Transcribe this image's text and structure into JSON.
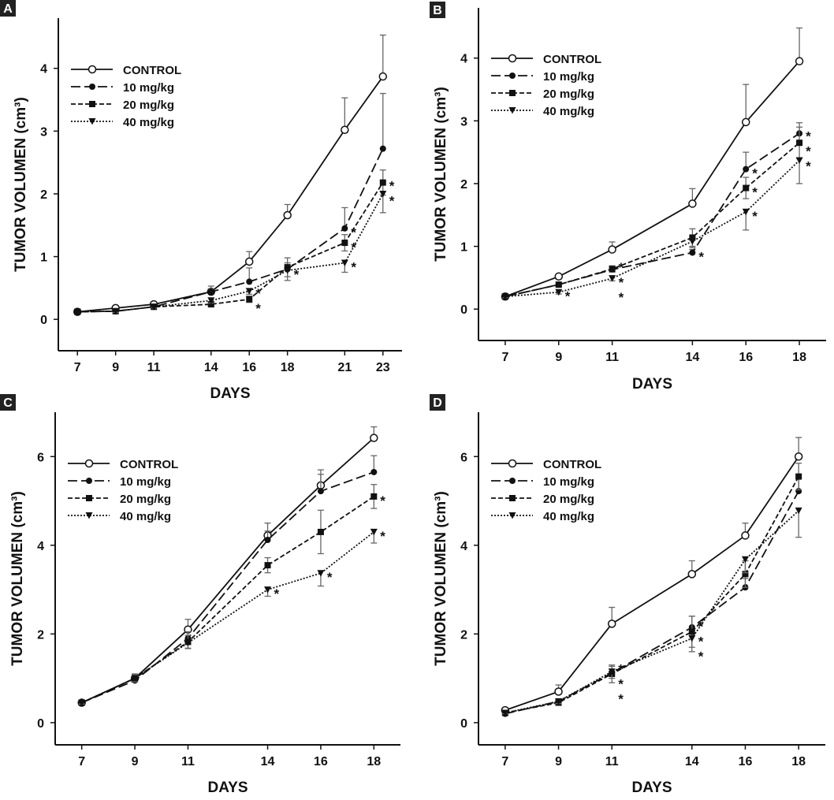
{
  "chart_data": [
    {
      "panel_label": "A",
      "type": "line",
      "xlabel": "DAYS",
      "ylabel": "TUMOR VOLUMEN (cm³)",
      "x": [
        7,
        9,
        11,
        14,
        16,
        18,
        21,
        23
      ],
      "x_ticks": [
        "7",
        "9",
        "11",
        "14",
        "16",
        "18",
        "21",
        "23"
      ],
      "y_ticks": [
        "0",
        "1",
        "2",
        "3",
        "4"
      ],
      "xlim": [
        6,
        24
      ],
      "ylim": [
        -0.5,
        4.8
      ],
      "grid": false,
      "legend_position": "top-left",
      "series": [
        {
          "name": "CONTROL",
          "marker": "open-circle",
          "line": "solid",
          "values": [
            0.12,
            0.18,
            0.24,
            0.44,
            0.92,
            1.66,
            3.02,
            3.87
          ],
          "error": [
            0,
            0.02,
            0.02,
            0.09,
            0.16,
            0.17,
            0.51,
            0.66
          ],
          "significant_days": []
        },
        {
          "name": "10 mg/kg",
          "marker": "filled-circle",
          "line": "long-dash",
          "values": [
            0.12,
            0.13,
            0.2,
            0.44,
            0.6,
            0.8,
            1.45,
            2.72
          ],
          "error": [
            0,
            0.02,
            0.02,
            0.05,
            0.22,
            0.1,
            0.33,
            0.88
          ],
          "significant_days": [
            21
          ]
        },
        {
          "name": "20 mg/kg",
          "marker": "filled-square",
          "line": "short-dash",
          "values": [
            0.12,
            0.13,
            0.2,
            0.24,
            0.32,
            0.83,
            1.22,
            2.18
          ],
          "error": [
            0,
            0.02,
            0.02,
            0.03,
            0.05,
            0.15,
            0.13,
            0.2
          ],
          "significant_days": [
            16,
            21,
            23
          ]
        },
        {
          "name": "40 mg/kg",
          "marker": "down-triangle",
          "line": "dotted",
          "values": [
            0.12,
            0.13,
            0.2,
            0.3,
            0.45,
            0.78,
            0.9,
            2.0
          ],
          "error": [
            0,
            0.02,
            0.02,
            0.04,
            0.05,
            0.16,
            0.15,
            0.3
          ],
          "significant_days": [
            16,
            18,
            21,
            23
          ]
        }
      ]
    },
    {
      "panel_label": "B",
      "type": "line",
      "xlabel": "DAYS",
      "ylabel": "TUMOR VOLUMEN (cm³)",
      "x": [
        7,
        9,
        11,
        14,
        16,
        18
      ],
      "x_ticks": [
        "7",
        "9",
        "11",
        "14",
        "16",
        "18"
      ],
      "y_ticks": [
        "0",
        "1",
        "2",
        "3",
        "4"
      ],
      "xlim": [
        6,
        19
      ],
      "ylim": [
        -0.5,
        4.8
      ],
      "grid": false,
      "legend_position": "top-left",
      "series": [
        {
          "name": "CONTROL",
          "marker": "open-circle",
          "line": "solid",
          "values": [
            0.2,
            0.52,
            0.95,
            1.68,
            2.98,
            3.95
          ],
          "error": [
            0.02,
            0.03,
            0.12,
            0.24,
            0.6,
            0.53
          ],
          "significant_days": []
        },
        {
          "name": "10 mg/kg",
          "marker": "filled-circle",
          "line": "long-dash",
          "values": [
            0.2,
            0.39,
            0.63,
            0.9,
            2.23,
            2.8
          ],
          "error": [
            0.02,
            0.03,
            0.05,
            0.05,
            0.27,
            0.17
          ],
          "significant_days": [
            11,
            14,
            16,
            18
          ]
        },
        {
          "name": "20 mg/kg",
          "marker": "filled-square",
          "line": "short-dash",
          "values": [
            0.2,
            0.39,
            0.64,
            1.14,
            1.93,
            2.65
          ],
          "error": [
            0.02,
            0.03,
            0.05,
            0.14,
            0.17,
            0.25
          ],
          "significant_days": [
            11,
            16,
            18
          ]
        },
        {
          "name": "40 mg/kg",
          "marker": "down-triangle",
          "line": "dotted",
          "values": [
            0.2,
            0.27,
            0.49,
            1.08,
            1.55,
            2.37
          ],
          "error": [
            0.02,
            0.03,
            0.04,
            0.1,
            0.29,
            0.37
          ],
          "significant_days": [
            9,
            11,
            16,
            18
          ]
        }
      ]
    },
    {
      "panel_label": "C",
      "type": "line",
      "xlabel": "DAYS",
      "ylabel": "TUMOR VOLUMEN (cm³)",
      "x": [
        7,
        9,
        11,
        14,
        16,
        18
      ],
      "x_ticks": [
        "7",
        "9",
        "11",
        "14",
        "16",
        "18"
      ],
      "y_ticks": [
        "0",
        "2",
        "4",
        "6"
      ],
      "xlim": [
        6,
        19
      ],
      "ylim": [
        -0.5,
        7
      ],
      "grid": false,
      "legend_position": "top-left",
      "series": [
        {
          "name": "CONTROL",
          "marker": "open-circle",
          "line": "solid",
          "values": [
            0.45,
            1.0,
            2.1,
            4.22,
            5.35,
            6.42
          ],
          "error": [
            0.03,
            0.1,
            0.23,
            0.28,
            0.35,
            0.25
          ],
          "significant_days": []
        },
        {
          "name": "10 mg/kg",
          "marker": "filled-circle",
          "line": "long-dash",
          "values": [
            0.45,
            0.95,
            1.9,
            4.12,
            5.22,
            5.65
          ],
          "error": [
            0.03,
            0.08,
            0.15,
            0.2,
            0.38,
            0.37
          ],
          "significant_days": []
        },
        {
          "name": "20 mg/kg",
          "marker": "filled-square",
          "line": "short-dash",
          "values": [
            0.45,
            1.0,
            1.82,
            3.55,
            4.3,
            5.1
          ],
          "error": [
            0.03,
            0.08,
            0.15,
            0.17,
            0.49,
            0.27
          ],
          "significant_days": [
            18
          ]
        },
        {
          "name": "40 mg/kg",
          "marker": "down-triangle",
          "line": "dotted",
          "values": [
            0.45,
            1.0,
            1.8,
            3.0,
            3.37,
            4.3
          ],
          "error": [
            0.03,
            0.08,
            0.12,
            0.15,
            0.29,
            0.25
          ],
          "significant_days": [
            14,
            16,
            18
          ]
        }
      ]
    },
    {
      "panel_label": "D",
      "type": "line",
      "xlabel": "DAYS",
      "ylabel": "TUMOR VOLUMEN (cm³)",
      "x": [
        7,
        9,
        11,
        14,
        16,
        18
      ],
      "x_ticks": [
        "7",
        "9",
        "11",
        "14",
        "16",
        "18"
      ],
      "y_ticks": [
        "0",
        "2",
        "4",
        "6"
      ],
      "xlim": [
        6,
        19
      ],
      "ylim": [
        -0.5,
        7
      ],
      "grid": false,
      "legend_position": "top-left",
      "series": [
        {
          "name": "CONTROL",
          "marker": "open-circle",
          "line": "solid",
          "values": [
            0.28,
            0.7,
            2.23,
            3.35,
            4.22,
            6.0
          ],
          "error": [
            0.03,
            0.15,
            0.37,
            0.3,
            0.28,
            0.43
          ],
          "significant_days": []
        },
        {
          "name": "10 mg/kg",
          "marker": "filled-circle",
          "line": "long-dash",
          "values": [
            0.2,
            0.48,
            1.12,
            2.15,
            3.05,
            5.22
          ],
          "error": [
            0.02,
            0.05,
            0.15,
            0.25,
            0.2,
            0.3
          ],
          "significant_days": [
            11,
            14
          ]
        },
        {
          "name": "20 mg/kg",
          "marker": "filled-square",
          "line": "short-dash",
          "values": [
            0.22,
            0.45,
            1.1,
            2.05,
            3.35,
            5.55
          ],
          "error": [
            0.02,
            0.05,
            0.2,
            0.35,
            0.3,
            0.3
          ],
          "significant_days": [
            11,
            14
          ]
        },
        {
          "name": "40 mg/kg",
          "marker": "down-triangle",
          "line": "dotted",
          "values": [
            0.22,
            0.48,
            1.15,
            1.9,
            3.68,
            4.78
          ],
          "error": [
            0.02,
            0.05,
            0.15,
            0.3,
            0.3,
            0.6
          ],
          "significant_days": [
            11,
            14
          ]
        }
      ]
    }
  ]
}
